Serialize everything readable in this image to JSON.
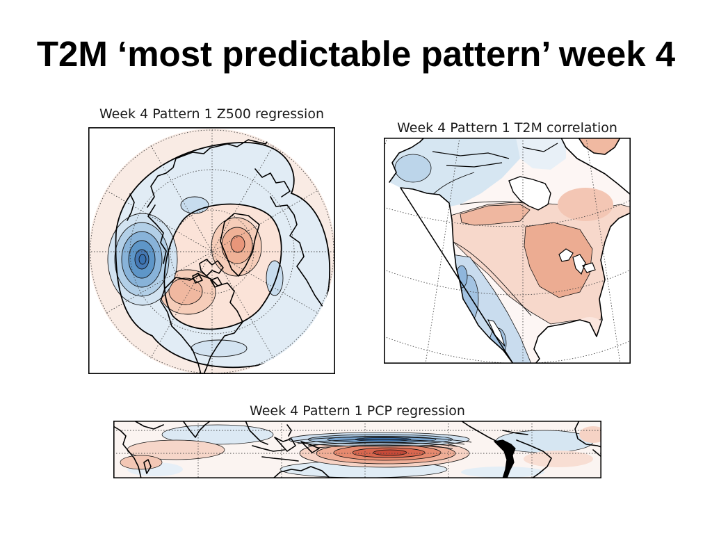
{
  "slide": {
    "title": "T2M ‘most predictable pattern’ week 4"
  },
  "panels": {
    "z500": {
      "title": "Week 4 Pattern 1 Z500 regression"
    },
    "t2m": {
      "title": "Week 4 Pattern 1 T2M correlation"
    },
    "pcp": {
      "title": "Week 4 Pattern 1 PCP regression"
    }
  },
  "colors": {
    "negative": "#3a72b0",
    "positive": "#c84a38",
    "background": "#ffffff",
    "text": "#000000"
  }
}
